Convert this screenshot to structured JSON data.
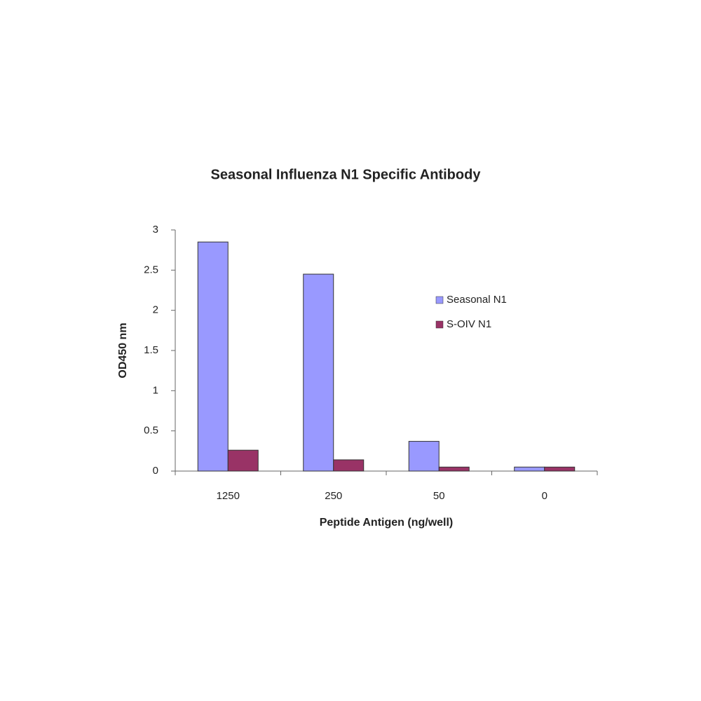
{
  "chart_data": {
    "type": "bar",
    "title": "Seasonal Influenza N1 Specific Antibody",
    "x_label": "Peptide Antigen (ng/well)",
    "y_label": "OD450 nm",
    "categories": [
      "1250",
      "250",
      "50",
      "0"
    ],
    "series": [
      {
        "name": "Seasonal N1",
        "color": "#9999ff",
        "values": [
          2.85,
          2.45,
          0.37,
          0.05
        ]
      },
      {
        "name": "S-OIV N1",
        "color": "#993366",
        "values": [
          0.26,
          0.14,
          0.05,
          0.05
        ]
      }
    ],
    "ylim": [
      0,
      3
    ],
    "yticks": [
      0,
      0.5,
      1,
      1.5,
      2,
      2.5,
      3
    ],
    "grid": false,
    "legend": "right"
  }
}
